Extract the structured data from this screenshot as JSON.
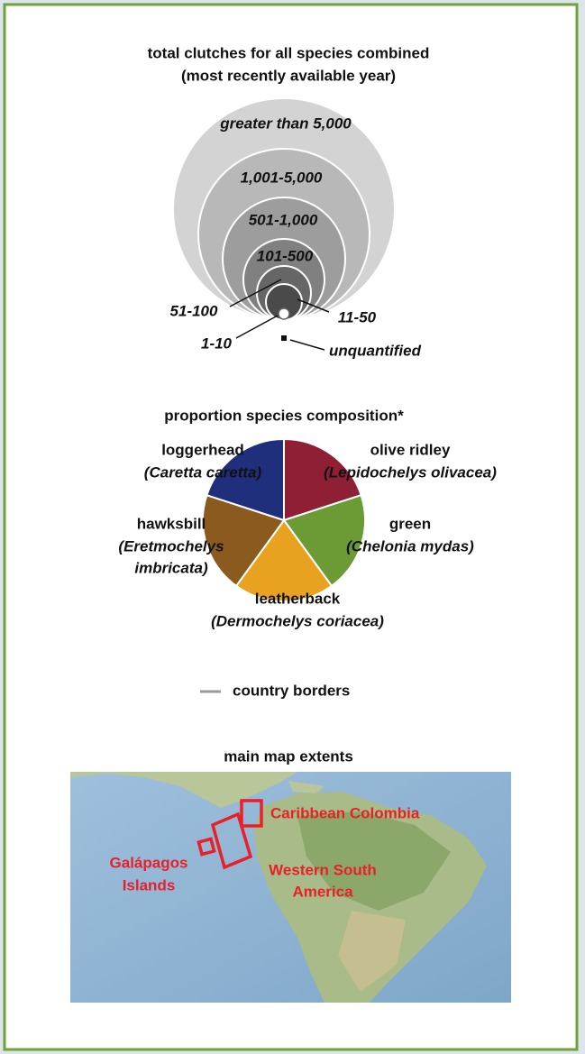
{
  "clutches": {
    "title_lines": [
      "total clutches for all species combined",
      "(most recently available year)"
    ],
    "classes": [
      "greater than 5,000",
      "1,001-5,000",
      "501-1,000",
      "101-500",
      "51-100",
      "11-50",
      "1-10",
      "unquantified"
    ]
  },
  "species": {
    "title": "proportion species composition*",
    "items": [
      {
        "common": "loggerhead",
        "scientific_lines": [
          "(Caretta caretta)"
        ]
      },
      {
        "common": "olive ridley",
        "scientific_lines": [
          "(Lepidochelys olivacea)"
        ]
      },
      {
        "common": "hawksbill",
        "scientific_lines": [
          "(Eretmochelys",
          "imbricata)"
        ]
      },
      {
        "common": "green",
        "scientific_lines": [
          "(Chelonia mydas)"
        ]
      },
      {
        "common": "leatherback",
        "scientific_lines": [
          "(Dermochelys coriacea)"
        ]
      }
    ]
  },
  "borders_label": "country borders",
  "extents": {
    "title": "main map extents",
    "labels": [
      [
        "Caribbean Colombia"
      ],
      [
        "Galápagos",
        "Islands"
      ],
      [
        "Western South",
        "America"
      ]
    ]
  }
}
